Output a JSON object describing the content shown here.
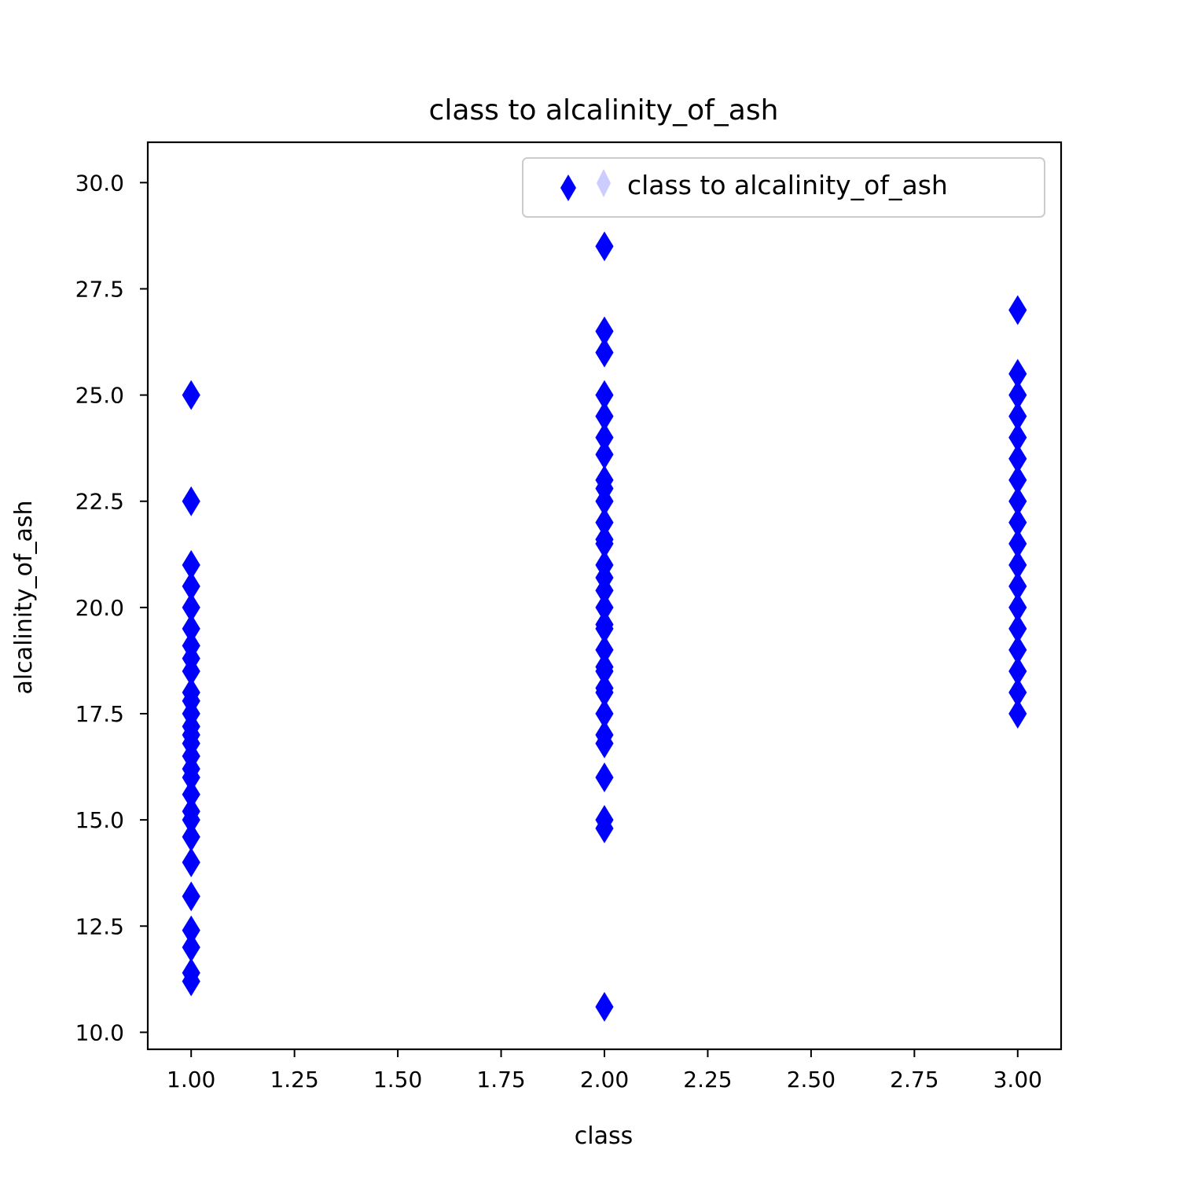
{
  "chart_data": {
    "type": "scatter",
    "title": "class to alcalinity_of_ash",
    "xlabel": "class",
    "ylabel": "alcalinity_of_ash",
    "xlim": [
      0.895,
      3.105
    ],
    "ylim": [
      9.6,
      30.95
    ],
    "xticks": [
      "1.00",
      "1.25",
      "1.50",
      "1.75",
      "2.00",
      "2.25",
      "2.50",
      "2.75",
      "3.00"
    ],
    "yticks": [
      "10.0",
      "12.5",
      "15.0",
      "17.5",
      "20.0",
      "22.5",
      "25.0",
      "27.5",
      "30.0"
    ],
    "grid": false,
    "legend": {
      "position": "top-right",
      "entries": [
        "class to alcalinity_of_ash"
      ]
    },
    "marker": "thin-diamond",
    "color": "#0000ff",
    "series": [
      {
        "name": "class to alcalinity_of_ash",
        "points": [
          [
            1,
            25.0
          ],
          [
            1,
            22.5
          ],
          [
            1,
            21.0
          ],
          [
            1,
            20.5
          ],
          [
            1,
            20.0
          ],
          [
            1,
            19.5
          ],
          [
            1,
            19.1
          ],
          [
            1,
            18.8
          ],
          [
            1,
            18.5
          ],
          [
            1,
            18.0
          ],
          [
            1,
            17.8
          ],
          [
            1,
            17.5
          ],
          [
            1,
            17.2
          ],
          [
            1,
            17.0
          ],
          [
            1,
            16.8
          ],
          [
            1,
            16.5
          ],
          [
            1,
            16.2
          ],
          [
            1,
            16.0
          ],
          [
            1,
            15.6
          ],
          [
            1,
            15.2
          ],
          [
            1,
            15.0
          ],
          [
            1,
            14.6
          ],
          [
            1,
            14.0
          ],
          [
            1,
            13.2
          ],
          [
            1,
            12.4
          ],
          [
            1,
            12.0
          ],
          [
            1,
            11.4
          ],
          [
            1,
            11.2
          ],
          [
            2,
            28.5
          ],
          [
            2,
            26.5
          ],
          [
            2,
            26.0
          ],
          [
            2,
            25.0
          ],
          [
            2,
            24.5
          ],
          [
            2,
            24.0
          ],
          [
            2,
            23.6
          ],
          [
            2,
            23.0
          ],
          [
            2,
            22.8
          ],
          [
            2,
            22.5
          ],
          [
            2,
            22.0
          ],
          [
            2,
            21.6
          ],
          [
            2,
            21.5
          ],
          [
            2,
            21.0
          ],
          [
            2,
            20.7
          ],
          [
            2,
            20.4
          ],
          [
            2,
            20.0
          ],
          [
            2,
            19.6
          ],
          [
            2,
            19.5
          ],
          [
            2,
            19.0
          ],
          [
            2,
            18.6
          ],
          [
            2,
            18.5
          ],
          [
            2,
            18.1
          ],
          [
            2,
            18.0
          ],
          [
            2,
            17.5
          ],
          [
            2,
            17.0
          ],
          [
            2,
            16.8
          ],
          [
            2,
            16.0
          ],
          [
            2,
            15.0
          ],
          [
            2,
            14.8
          ],
          [
            2,
            10.6
          ],
          [
            3,
            27.0
          ],
          [
            3,
            25.5
          ],
          [
            3,
            25.0
          ],
          [
            3,
            24.5
          ],
          [
            3,
            24.0
          ],
          [
            3,
            23.5
          ],
          [
            3,
            23.0
          ],
          [
            3,
            22.5
          ],
          [
            3,
            22.0
          ],
          [
            3,
            21.5
          ],
          [
            3,
            21.0
          ],
          [
            3,
            20.5
          ],
          [
            3,
            20.0
          ],
          [
            3,
            19.5
          ],
          [
            3,
            19.0
          ],
          [
            3,
            18.5
          ],
          [
            3,
            18.0
          ],
          [
            3,
            17.5
          ]
        ]
      }
    ]
  }
}
